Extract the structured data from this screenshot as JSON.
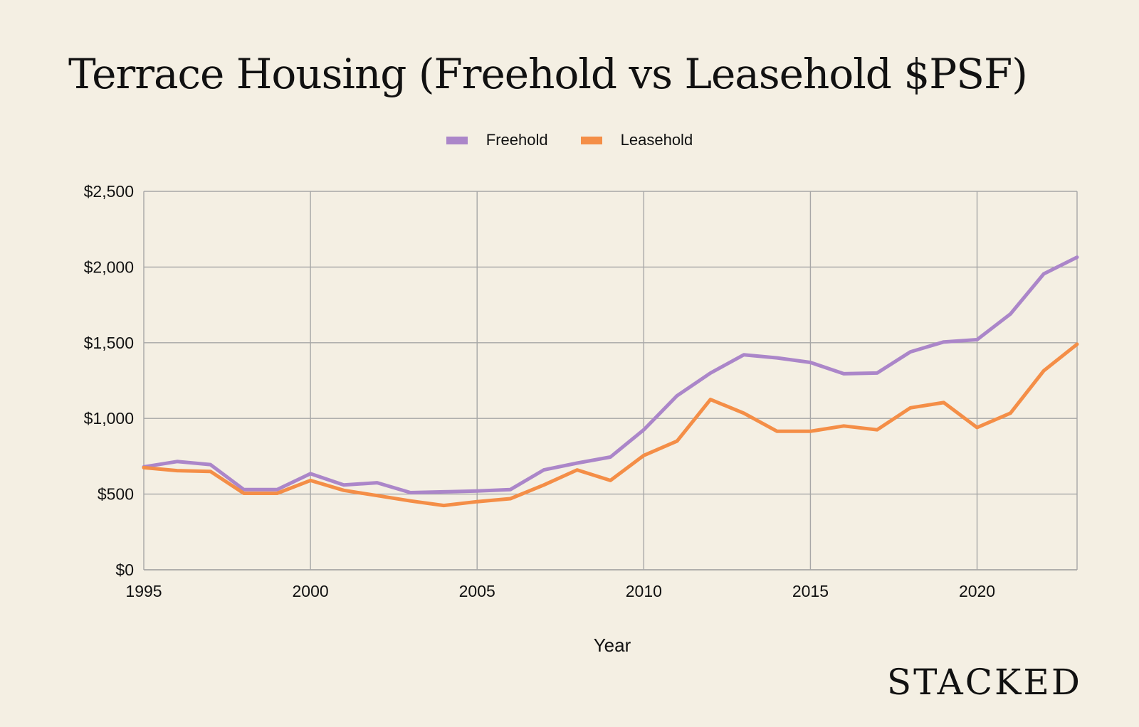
{
  "chart_data": {
    "type": "line",
    "title": "Terrace Housing (Freehold vs Leasehold $PSF)",
    "xlabel": "Year",
    "ylabel": "",
    "xlim": [
      1995,
      2023
    ],
    "ylim": [
      0,
      2500
    ],
    "x_ticks": [
      "1995",
      "2000",
      "2005",
      "2010",
      "2015",
      "2020"
    ],
    "y_ticks": [
      "$0",
      "$500",
      "$1,000",
      "$1,500",
      "$2,000",
      "$2,500"
    ],
    "grid": true,
    "legend_position": "top-center",
    "series": [
      {
        "name": "Freehold",
        "color": "#ab86c9",
        "x": [
          1995,
          1996,
          1997,
          1998,
          1999,
          2000,
          2001,
          2002,
          2003,
          2004,
          2005,
          2006,
          2007,
          2008,
          2009,
          2010,
          2011,
          2012,
          2013,
          2014,
          2015,
          2016,
          2017,
          2018,
          2019,
          2020,
          2021,
          2022,
          2023
        ],
        "values": [
          680,
          715,
          695,
          530,
          530,
          635,
          560,
          575,
          510,
          515,
          520,
          530,
          660,
          705,
          745,
          925,
          1150,
          1300,
          1420,
          1400,
          1370,
          1295,
          1300,
          1440,
          1505,
          1520,
          1690,
          1955,
          2065
        ]
      },
      {
        "name": "Leasehold",
        "color": "#f48e47",
        "x": [
          1995,
          1996,
          1997,
          1998,
          1999,
          2000,
          2001,
          2002,
          2003,
          2004,
          2005,
          2006,
          2007,
          2008,
          2009,
          2010,
          2011,
          2012,
          2013,
          2014,
          2015,
          2016,
          2017,
          2018,
          2019,
          2020,
          2021,
          2022,
          2023
        ],
        "values": [
          675,
          655,
          650,
          505,
          505,
          590,
          525,
          490,
          455,
          425,
          450,
          470,
          560,
          660,
          590,
          755,
          850,
          1125,
          1035,
          915,
          915,
          950,
          925,
          1070,
          1105,
          940,
          1035,
          1315,
          1490
        ]
      }
    ]
  },
  "legend": {
    "freehold_label": "Freehold",
    "leasehold_label": "Leasehold"
  },
  "brand": "STACKED"
}
